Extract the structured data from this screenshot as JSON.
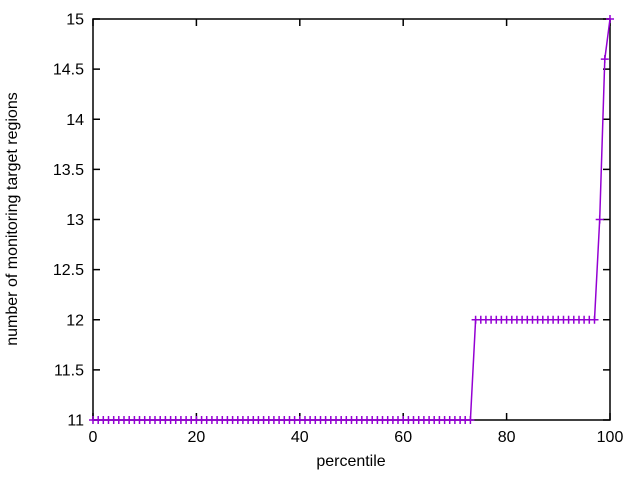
{
  "page": {
    "background_color": "#ffffff",
    "axis_color": "#000000"
  },
  "chart_data": {
    "type": "line",
    "title": "",
    "xlabel": "percentile",
    "ylabel": "number of monitoring target regions",
    "xlim": [
      0,
      100
    ],
    "ylim": [
      11,
      15
    ],
    "xticks": [
      0,
      20,
      40,
      60,
      80,
      100
    ],
    "yticks": [
      11,
      11.5,
      12,
      12.5,
      13,
      13.5,
      14,
      14.5,
      15
    ],
    "grid": false,
    "legend_position": "none",
    "line_color": "#9400d3",
    "marker": "plus",
    "marker_size": 4,
    "series": [
      {
        "name": "number of monitoring target regions",
        "x_start": 0,
        "x_step": 1,
        "y": [
          11,
          11,
          11,
          11,
          11,
          11,
          11,
          11,
          11,
          11,
          11,
          11,
          11,
          11,
          11,
          11,
          11,
          11,
          11,
          11,
          11,
          11,
          11,
          11,
          11,
          11,
          11,
          11,
          11,
          11,
          11,
          11,
          11,
          11,
          11,
          11,
          11,
          11,
          11,
          11,
          11,
          11,
          11,
          11,
          11,
          11,
          11,
          11,
          11,
          11,
          11,
          11,
          11,
          11,
          11,
          11,
          11,
          11,
          11,
          11,
          11,
          11,
          11,
          11,
          11,
          11,
          11,
          11,
          11,
          11,
          11,
          11,
          11,
          11,
          12,
          12,
          12,
          12,
          12,
          12,
          12,
          12,
          12,
          12,
          12,
          12,
          12,
          12,
          12,
          12,
          12,
          12,
          12,
          12,
          12,
          12,
          12,
          12,
          13,
          14.6,
          15
        ]
      }
    ]
  }
}
